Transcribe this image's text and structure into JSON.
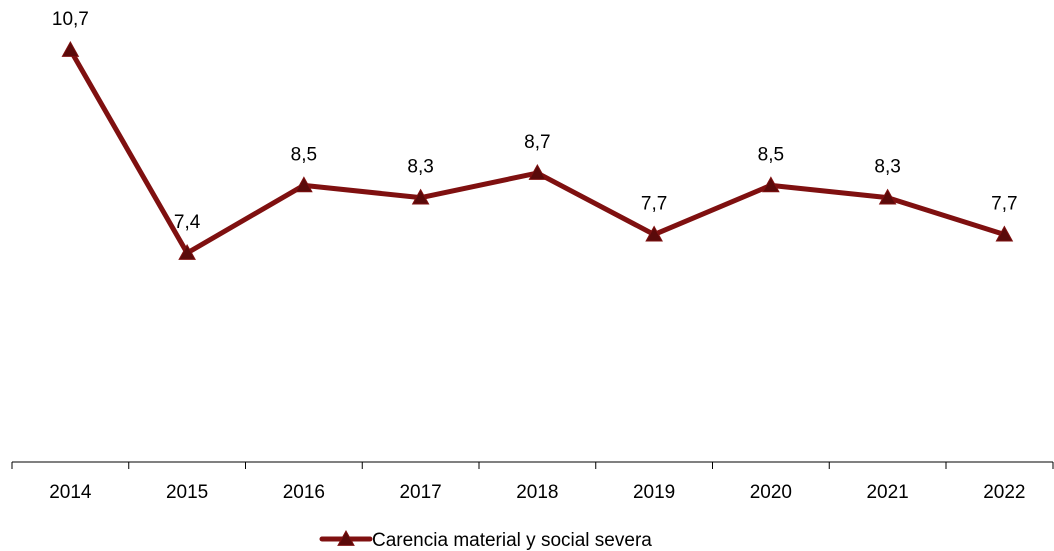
{
  "chart_data": {
    "type": "line",
    "categories": [
      "2014",
      "2015",
      "2016",
      "2017",
      "2018",
      "2019",
      "2020",
      "2021",
      "2022"
    ],
    "series": [
      {
        "name": "Carencia material y social severa",
        "values": [
          10.7,
          7.4,
          8.5,
          8.3,
          8.7,
          7.7,
          8.5,
          8.3,
          7.7
        ],
        "labels": [
          "10,7",
          "7,4",
          "8,5",
          "8,3",
          "8,7",
          "7,7",
          "8,5",
          "8,3",
          "7,7"
        ],
        "color": "#7f1010",
        "marker": "triangle"
      }
    ],
    "title": "",
    "xlabel": "",
    "ylabel": "",
    "legend_position": "bottom",
    "grid": false
  }
}
